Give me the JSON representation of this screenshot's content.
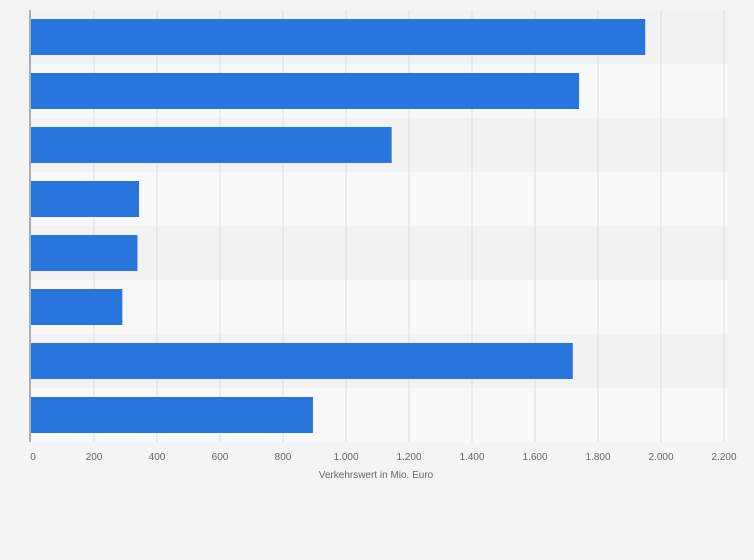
{
  "chart_data": {
    "type": "bar",
    "orientation": "horizontal",
    "title": "",
    "xlabel": "Verkehrswert in Mio. Euro",
    "ylabel": "",
    "categories": [
      "",
      "",
      "",
      "",
      "",
      "",
      "",
      ""
    ],
    "values": [
      1950,
      1740,
      1145,
      343,
      338,
      290,
      1720,
      895
    ],
    "xlim": [
      0,
      2200
    ],
    "x_ticks": [
      0,
      200,
      400,
      600,
      800,
      1000,
      1200,
      1400,
      1600,
      1800,
      2000,
      2200
    ],
    "x_tick_labels": [
      "0",
      "200",
      "400",
      "600",
      "800",
      "1.000",
      "1.200",
      "1.400",
      "1.600",
      "1.800",
      "2.000",
      "2.200"
    ],
    "grid": true,
    "legend": "none"
  },
  "colors": {
    "bar": "#2876dd",
    "background": "#f4f4f4",
    "band_light": "#f8f8f8",
    "band_dark": "#f2f2f2",
    "grid": "#dcdcdc",
    "axis": "#666666",
    "text": "#666666"
  }
}
